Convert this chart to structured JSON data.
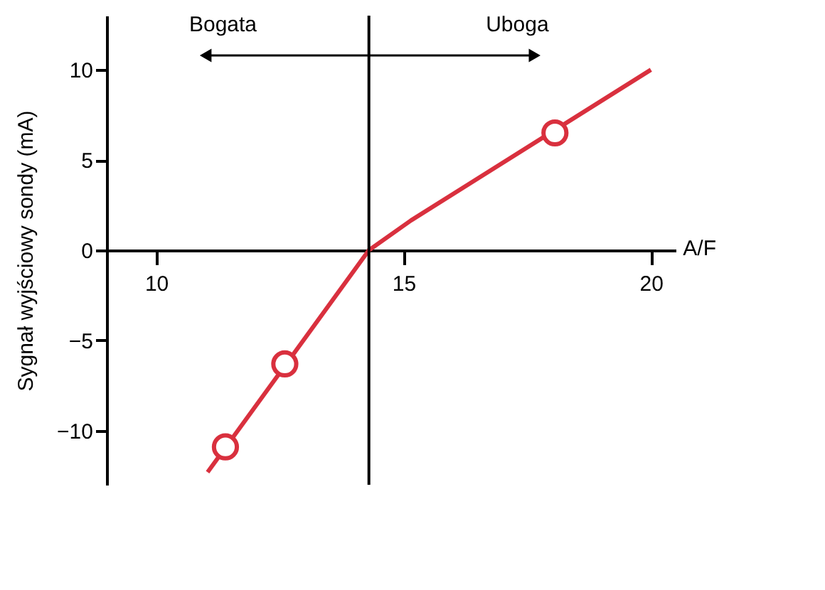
{
  "chart_data": {
    "type": "line",
    "ylabel": "Sygnał wyjściowy sondy (mA)",
    "xlabel": "A/F",
    "xlim": [
      9,
      20.5
    ],
    "xticks": [
      10,
      15,
      20
    ],
    "ylim": [
      -13,
      13
    ],
    "yticks": [
      -10,
      -5,
      0,
      5,
      10
    ],
    "grid": false,
    "series": [
      {
        "color": "#d9303e",
        "marker": "none",
        "x": [
          11.04,
          14.3,
          15.15,
          20
        ],
        "values": [
          -12.3,
          0,
          1.65,
          10
        ]
      },
      {
        "type": "scatter",
        "color": "#d9303e",
        "marker": "circle",
        "x": [
          11.4,
          12.6,
          18.06
        ],
        "values": [
          -10.9,
          -6.3,
          6.5
        ]
      }
    ],
    "ref_lines": [
      {
        "axis": "x",
        "value": 14.3,
        "label": null,
        "color": "#000000"
      }
    ],
    "annotations": [
      "Bogata",
      "Uboga"
    ]
  }
}
